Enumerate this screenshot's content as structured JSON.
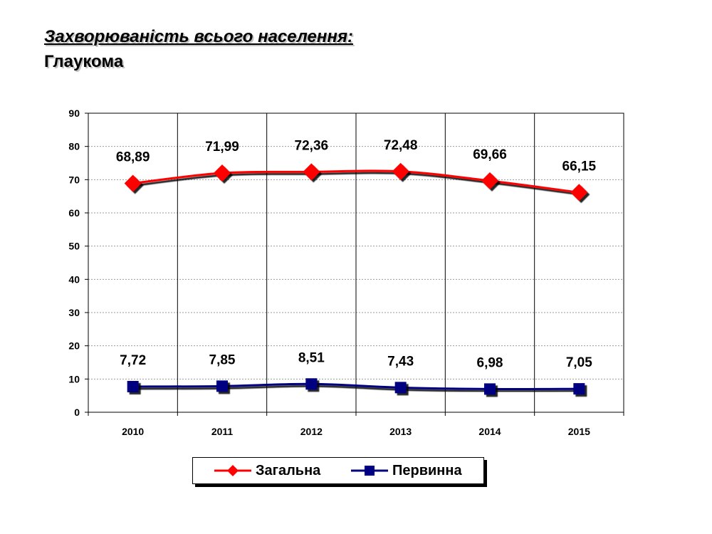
{
  "page": {
    "title": "Захворюваність всього населення:",
    "subtitle": "Глаукома"
  },
  "chart_data": {
    "type": "line",
    "categories": [
      "2010",
      "2011",
      "2012",
      "2013",
      "2014",
      "2015"
    ],
    "series": [
      {
        "name": "Загальна",
        "values": [
          68.89,
          71.99,
          72.36,
          72.48,
          69.66,
          66.15
        ],
        "labels": [
          "68,89",
          "71,99",
          "72,36",
          "72,48",
          "69,66",
          "66,15"
        ],
        "color": "#ff0000",
        "marker": "diamond"
      },
      {
        "name": "Первинна",
        "values": [
          7.72,
          7.85,
          8.51,
          7.43,
          6.98,
          7.05
        ],
        "labels": [
          "7,72",
          "7,85",
          "8,51",
          "7,43",
          "6,98",
          "7,05"
        ],
        "color": "#000080",
        "marker": "square"
      }
    ],
    "ylim": [
      0,
      90
    ],
    "yticks": [
      "0",
      "10",
      "20",
      "30",
      "40",
      "50",
      "60",
      "70",
      "80",
      "90"
    ],
    "grid": "horizontal dotted, vertical solid",
    "legend": "bottom-center"
  }
}
